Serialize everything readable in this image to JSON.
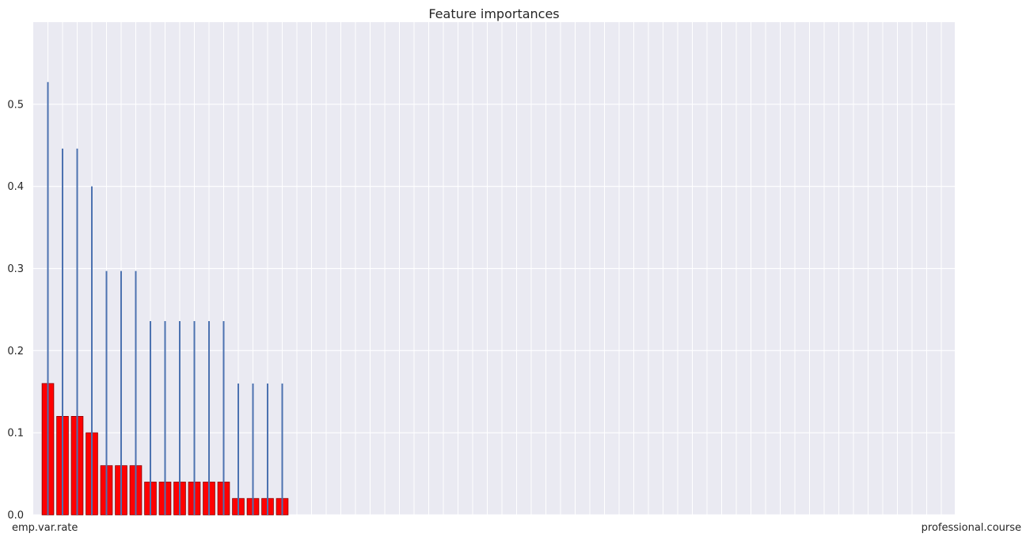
{
  "chart_data": {
    "type": "bar",
    "title": "Feature importances",
    "xlabel": "",
    "ylabel": "",
    "ylim": [
      0,
      0.6
    ],
    "yticks": [
      "0.0",
      "0.1",
      "0.2",
      "0.3",
      "0.4",
      "0.5"
    ],
    "grid": true,
    "style": "seaborn-darkgrid",
    "colors": {
      "bar_fill": "#ff0000",
      "bar_edge": "#8b0000",
      "error_bar": "#4c72b0",
      "background": "#eaeaf2",
      "grid": "#ffffff",
      "text": "#262626"
    },
    "categories": [
      "emp.var.rate",
      "",
      "",
      "",
      "",
      "",
      "",
      "",
      "",
      "",
      "",
      "",
      "",
      "",
      "",
      "",
      "",
      "",
      "",
      "",
      "",
      "",
      "",
      "",
      "",
      "",
      "",
      "",
      "",
      "",
      "",
      "",
      "",
      "",
      "",
      "",
      "",
      "",
      "",
      "",
      "",
      "",
      "",
      "",
      "",
      "",
      "",
      "",
      "",
      "",
      "",
      "",
      "",
      "",
      "",
      "",
      "",
      "",
      "",
      "",
      "",
      "",
      "",
      "",
      "professional.course"
    ],
    "values": [
      0.16,
      0.12,
      0.12,
      0.1,
      0.06,
      0.06,
      0.06,
      0.04,
      0.04,
      0.04,
      0.04,
      0.04,
      0.04,
      0.02,
      0.02,
      0.02,
      0.02,
      0,
      0,
      0,
      0,
      0,
      0,
      0,
      0,
      0,
      0,
      0,
      0,
      0,
      0,
      0,
      0,
      0,
      0,
      0,
      0,
      0,
      0,
      0,
      0,
      0,
      0,
      0,
      0,
      0,
      0,
      0,
      0,
      0,
      0,
      0,
      0,
      0,
      0,
      0,
      0,
      0,
      0,
      0,
      0,
      0,
      0,
      0,
      0
    ],
    "errors": [
      0.367,
      0.326,
      0.326,
      0.3,
      0.237,
      0.237,
      0.237,
      0.196,
      0.196,
      0.196,
      0.196,
      0.196,
      0.196,
      0.14,
      0.14,
      0.14,
      0.14,
      0,
      0,
      0,
      0,
      0,
      0,
      0,
      0,
      0,
      0,
      0,
      0,
      0,
      0,
      0,
      0,
      0,
      0,
      0,
      0,
      0,
      0,
      0,
      0,
      0,
      0,
      0,
      0,
      0,
      0,
      0,
      0,
      0,
      0,
      0,
      0,
      0,
      0,
      0,
      0,
      0,
      0,
      0,
      0,
      0,
      0,
      0,
      0
    ]
  }
}
